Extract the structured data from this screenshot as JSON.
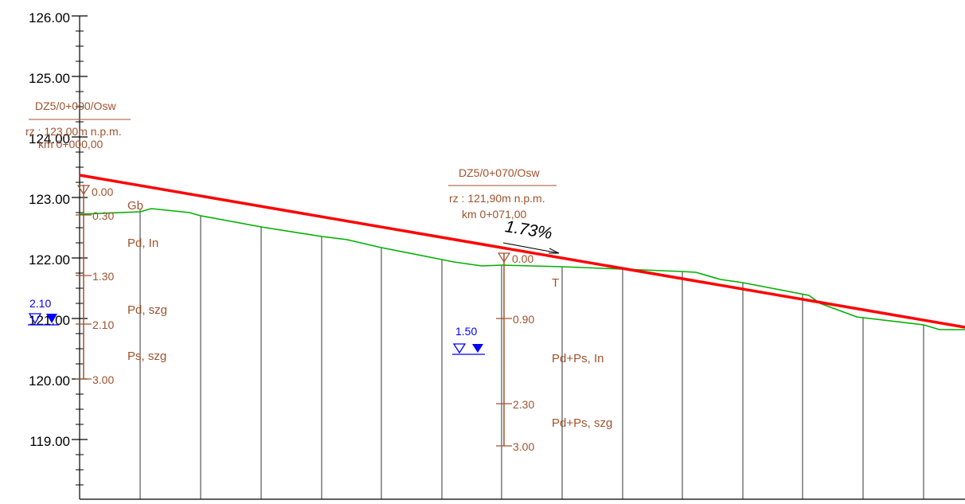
{
  "axis": {
    "labels": [
      "126.00",
      "125.00",
      "124.00",
      "123.00",
      "122.00",
      "121.00",
      "120.00",
      "119.00"
    ]
  },
  "borehole1": {
    "name": "DZ5/0+000/Osw",
    "rz": "rz : 123,00m n.p.m.",
    "km": "km  0+000,00",
    "depths": [
      "0.00",
      "0.30",
      "1.30",
      "2.10",
      "3.00"
    ],
    "soils": [
      "Gb",
      "Pd, In",
      "Pd, szg",
      "Ps, szg"
    ],
    "water": "2.10"
  },
  "borehole2": {
    "name": "DZ5/0+070/Osw",
    "rz": "rz : 121,90m n.p.m.",
    "km": "km  0+071,00",
    "depths": [
      "0.00",
      "0.90",
      "2.30",
      "3.00"
    ],
    "soils": [
      "T",
      "Pd+Ps, In",
      "Pd+Ps, szg"
    ],
    "water": "1.50"
  },
  "slope": {
    "label": "1.73%"
  },
  "colors": {
    "axis": "#000000",
    "borehole": "#a0522d",
    "design_line": "#ff0000",
    "terrain": "#00b000",
    "water": "#0000ff",
    "grid": "#000000"
  }
}
